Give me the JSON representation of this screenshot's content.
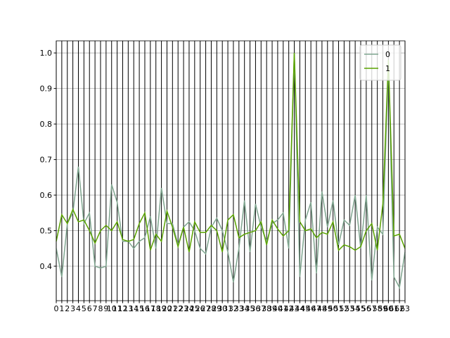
{
  "chart_data": {
    "type": "line",
    "x": [
      0,
      1,
      2,
      3,
      4,
      5,
      6,
      7,
      8,
      9,
      10,
      11,
      12,
      13,
      14,
      15,
      16,
      17,
      18,
      19,
      20,
      21,
      22,
      23,
      24,
      25,
      26,
      27,
      28,
      29,
      30,
      31,
      32,
      33,
      34,
      35,
      36,
      37,
      38,
      39,
      40,
      41,
      42,
      43,
      44,
      45,
      46,
      47,
      48,
      49,
      50,
      51,
      52,
      53,
      54,
      55,
      56,
      57,
      58,
      59,
      60,
      61,
      62,
      63
    ],
    "series": [
      {
        "name": "0",
        "color": "#7fa58f",
        "values": [
          0.45,
          0.37,
          0.52,
          0.55,
          0.68,
          0.52,
          0.55,
          0.4,
          0.395,
          0.4,
          0.63,
          0.58,
          0.47,
          0.47,
          0.45,
          0.47,
          0.48,
          0.54,
          0.45,
          0.62,
          0.52,
          0.52,
          0.46,
          0.51,
          0.525,
          0.5,
          0.45,
          0.435,
          0.51,
          0.535,
          0.5,
          0.44,
          0.355,
          0.45,
          0.585,
          0.44,
          0.575,
          0.51,
          0.47,
          0.52,
          0.53,
          0.55,
          0.45,
          1.0,
          0.37,
          0.53,
          0.58,
          0.38,
          0.61,
          0.51,
          0.585,
          0.46,
          0.53,
          0.515,
          0.6,
          0.45,
          0.6,
          0.36,
          0.51,
          0.49,
          0.97,
          0.37,
          0.34,
          0.44
        ]
      },
      {
        "name": "1",
        "color": "#5aa300",
        "values": [
          0.47,
          0.545,
          0.52,
          0.56,
          0.525,
          0.53,
          0.5,
          0.465,
          0.5,
          0.515,
          0.5,
          0.525,
          0.475,
          0.47,
          0.475,
          0.52,
          0.55,
          0.445,
          0.49,
          0.47,
          0.555,
          0.51,
          0.455,
          0.51,
          0.44,
          0.525,
          0.495,
          0.495,
          0.515,
          0.5,
          0.44,
          0.53,
          0.545,
          0.48,
          0.49,
          0.495,
          0.5,
          0.525,
          0.46,
          0.53,
          0.505,
          0.485,
          0.5,
          1.0,
          0.525,
          0.5,
          0.505,
          0.48,
          0.495,
          0.49,
          0.525,
          0.445,
          0.46,
          0.455,
          0.445,
          0.455,
          0.5,
          0.52,
          0.445,
          0.575,
          0.98,
          0.485,
          0.49,
          0.45
        ]
      }
    ],
    "xlim": [
      0,
      63
    ],
    "xticks": [
      0,
      1,
      2,
      3,
      4,
      5,
      6,
      7,
      8,
      9,
      10,
      11,
      12,
      13,
      14,
      15,
      16,
      17,
      18,
      19,
      20,
      21,
      22,
      23,
      24,
      25,
      26,
      27,
      28,
      29,
      30,
      31,
      32,
      33,
      34,
      35,
      36,
      37,
      38,
      39,
      40,
      41,
      42,
      43,
      44,
      45,
      46,
      47,
      48,
      49,
      50,
      51,
      52,
      53,
      54,
      55,
      56,
      57,
      58,
      59,
      60,
      61,
      62,
      63
    ],
    "ylim": [
      0.303,
      1.034
    ],
    "yticks": [
      {
        "value": 0.4,
        "label": "0.4"
      },
      {
        "value": 0.5,
        "label": "0.5"
      },
      {
        "value": 0.6,
        "label": "0.6"
      },
      {
        "value": 0.7,
        "label": "0.7"
      },
      {
        "value": 0.8,
        "label": "0.8"
      },
      {
        "value": 0.9,
        "label": "0.9"
      },
      {
        "value": 1.0,
        "label": "1.0"
      }
    ],
    "grid": true,
    "legend": "upper right"
  }
}
